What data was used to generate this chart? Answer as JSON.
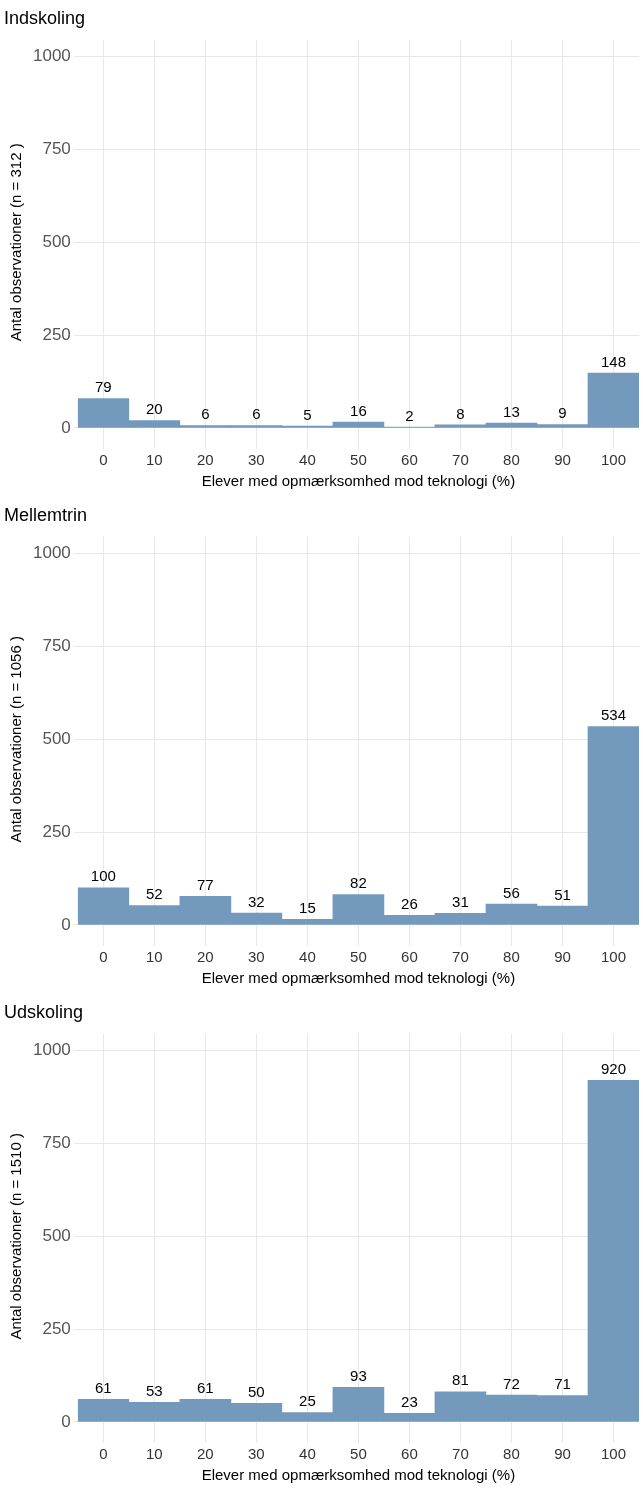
{
  "chart_data": [
    {
      "type": "bar",
      "title": "Indskoling",
      "xlabel": "Elever med opmærksomhed mod teknologi (%)",
      "ylabel": "Antal observationer (n = 312 )",
      "categories": [
        "0",
        "10",
        "20",
        "30",
        "40",
        "50",
        "60",
        "70",
        "80",
        "90",
        "100"
      ],
      "series": [
        {
          "color": "#7399bc",
          "values": [
            79,
            20,
            6,
            6,
            5,
            16,
            2,
            8,
            13,
            9,
            148
          ]
        }
      ],
      "ylim": [
        -46,
        1046
      ],
      "yticks": [
        0,
        250,
        500,
        750,
        1000
      ],
      "grid": true,
      "data_labels": true
    },
    {
      "type": "bar",
      "title": "Mellemtrin",
      "xlabel": "Elever med opmærksomhed mod teknologi (%)",
      "ylabel": "Antal observationer (n = 1056 )",
      "categories": [
        "0",
        "10",
        "20",
        "30",
        "40",
        "50",
        "60",
        "70",
        "80",
        "90",
        "100"
      ],
      "series": [
        {
          "color": "#7399bc",
          "values": [
            100,
            52,
            77,
            32,
            15,
            82,
            26,
            31,
            56,
            51,
            534
          ]
        }
      ],
      "ylim": [
        -46,
        1046
      ],
      "yticks": [
        0,
        250,
        500,
        750,
        1000
      ],
      "grid": true,
      "data_labels": true
    },
    {
      "type": "bar",
      "title": "Udskoling",
      "xlabel": "Elever med opmærksomhed mod teknologi (%)",
      "ylabel": "Antal observationer (n = 1510 )",
      "categories": [
        "0",
        "10",
        "20",
        "30",
        "40",
        "50",
        "60",
        "70",
        "80",
        "90",
        "100"
      ],
      "series": [
        {
          "color": "#7399bc",
          "values": [
            61,
            53,
            61,
            50,
            25,
            93,
            23,
            81,
            72,
            71,
            920
          ]
        }
      ],
      "ylim": [
        -46,
        1046
      ],
      "yticks": [
        0,
        250,
        500,
        750,
        1000
      ],
      "grid": true,
      "data_labels": true
    }
  ]
}
